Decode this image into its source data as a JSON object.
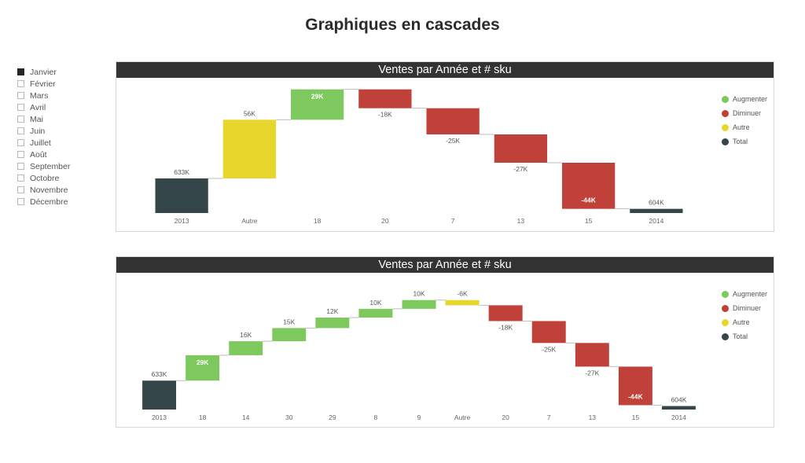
{
  "title": "Graphiques en cascades",
  "slicer": {
    "items": [
      {
        "label": "Janvier",
        "checked": true
      },
      {
        "label": "Février",
        "checked": false
      },
      {
        "label": "Mars",
        "checked": false
      },
      {
        "label": "Avril",
        "checked": false
      },
      {
        "label": "Mai",
        "checked": false
      },
      {
        "label": "Juin",
        "checked": false
      },
      {
        "label": "Juillet",
        "checked": false
      },
      {
        "label": "Août",
        "checked": false
      },
      {
        "label": "September",
        "checked": false
      },
      {
        "label": "Octobre",
        "checked": false
      },
      {
        "label": "Novembre",
        "checked": false
      },
      {
        "label": "Décembre",
        "checked": false
      }
    ]
  },
  "colors": {
    "increase": "#7dc95e",
    "decrease": "#c0413a",
    "other": "#e8d62d",
    "total": "#35464b"
  },
  "chart_data": [
    {
      "type": "waterfall",
      "title": "Ventes par Année et # sku",
      "legend": [
        {
          "label": "Augmenter",
          "kind": "increase"
        },
        {
          "label": "Diminuer",
          "kind": "decrease"
        },
        {
          "label": "Autre",
          "kind": "other"
        },
        {
          "label": "Total",
          "kind": "total"
        }
      ],
      "legend_position": "right",
      "categories": [
        "2013",
        "Autre",
        "18",
        "20",
        "7",
        "13",
        "15",
        "2014"
      ],
      "values": [
        633,
        56,
        29,
        -18,
        -25,
        -27,
        -44,
        604
      ],
      "kinds": [
        "total",
        "other",
        "increase",
        "decrease",
        "decrease",
        "decrease",
        "decrease",
        "total"
      ],
      "labels": [
        "633K",
        "56K",
        "29K",
        "-18K",
        "-25K",
        "-27K",
        "-44K",
        "604K"
      ],
      "unit": "K",
      "ylim": [
        600,
        720
      ]
    },
    {
      "type": "waterfall",
      "title": "Ventes par Année et # sku",
      "legend": [
        {
          "label": "Augmenter",
          "kind": "increase"
        },
        {
          "label": "Diminuer",
          "kind": "decrease"
        },
        {
          "label": "Autre",
          "kind": "other"
        },
        {
          "label": "Total",
          "kind": "total"
        }
      ],
      "legend_position": "right",
      "categories": [
        "2013",
        "18",
        "14",
        "30",
        "29",
        "8",
        "9",
        "Autre",
        "20",
        "7",
        "13",
        "15",
        "2014"
      ],
      "values": [
        633,
        29,
        16,
        15,
        12,
        10,
        10,
        -6,
        -18,
        -25,
        -27,
        -44,
        604
      ],
      "kinds": [
        "total",
        "increase",
        "increase",
        "increase",
        "increase",
        "increase",
        "increase",
        "other",
        "decrease",
        "decrease",
        "decrease",
        "decrease",
        "total"
      ],
      "labels": [
        "633K",
        "29K",
        "16K",
        "15K",
        "12K",
        "10K",
        "10K",
        "-6K",
        "-18K",
        "-25K",
        "-27K",
        "-44K",
        "604K"
      ],
      "unit": "K",
      "ylim": [
        600,
        740
      ]
    }
  ]
}
